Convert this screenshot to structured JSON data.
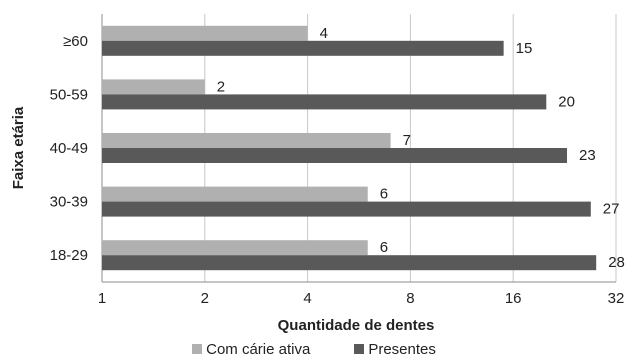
{
  "chart_data": {
    "type": "bar",
    "orientation": "horizontal",
    "xscale": "log2",
    "xlabel": "Quantidade de dentes",
    "ylabel": "Faixa etária",
    "xticks": [
      "1",
      "2",
      "4",
      "8",
      "16",
      "32"
    ],
    "xlim": [
      1,
      32
    ],
    "categories": [
      "≥60",
      "50-59",
      "40-49",
      "30-39",
      "18-29"
    ],
    "series": [
      {
        "name": "Com cárie ativa",
        "values": [
          4,
          2,
          7,
          6,
          6
        ],
        "color": "#b0b0b0"
      },
      {
        "name": "Presentes",
        "values": [
          15,
          20,
          23,
          27,
          28
        ],
        "color": "#595959"
      }
    ],
    "grid": "vertical",
    "legend_position": "bottom"
  }
}
